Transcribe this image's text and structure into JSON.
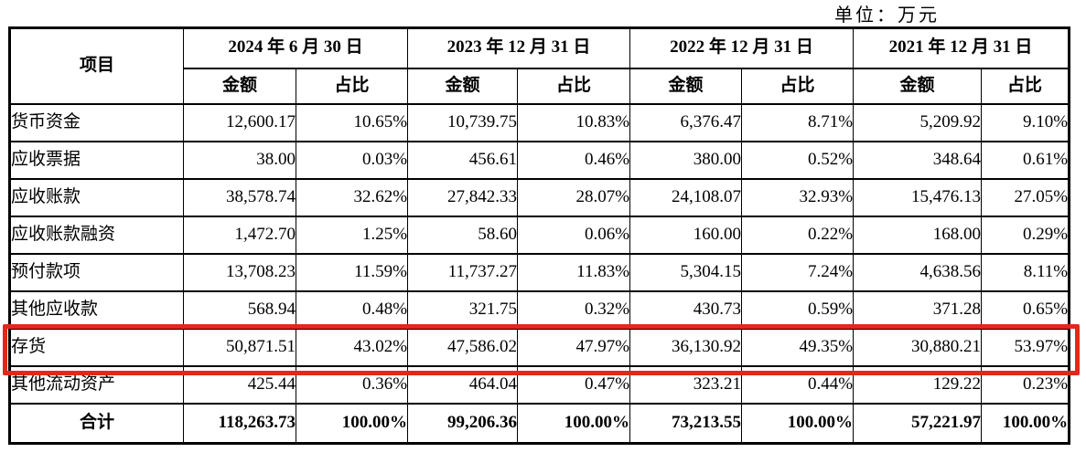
{
  "unit_label": "单位：万元",
  "accent_color": "#e2271c",
  "table": {
    "item_header": "项目",
    "periods": [
      {
        "label": "2024 年 6 月 30 日",
        "amount_label": "金额",
        "ratio_label": "占比"
      },
      {
        "label": "2023 年 12 月 31 日",
        "amount_label": "金额",
        "ratio_label": "占比"
      },
      {
        "label": "2022 年 12 月 31 日",
        "amount_label": "金额",
        "ratio_label": "占比"
      },
      {
        "label": "2021 年 12 月 31 日",
        "amount_label": "金额",
        "ratio_label": "占比"
      }
    ],
    "rows": [
      {
        "item": "货币资金",
        "cells": [
          "12,600.17",
          "10.65%",
          "10,739.75",
          "10.83%",
          "6,376.47",
          "8.71%",
          "5,209.92",
          "9.10%"
        ]
      },
      {
        "item": "应收票据",
        "cells": [
          "38.00",
          "0.03%",
          "456.61",
          "0.46%",
          "380.00",
          "0.52%",
          "348.64",
          "0.61%"
        ]
      },
      {
        "item": "应收账款",
        "cells": [
          "38,578.74",
          "32.62%",
          "27,842.33",
          "28.07%",
          "24,108.07",
          "32.93%",
          "15,476.13",
          "27.05%"
        ]
      },
      {
        "item": "应收账款融资",
        "cells": [
          "1,472.70",
          "1.25%",
          "58.60",
          "0.06%",
          "160.00",
          "0.22%",
          "168.00",
          "0.29%"
        ]
      },
      {
        "item": "预付款项",
        "cells": [
          "13,708.23",
          "11.59%",
          "11,737.27",
          "11.83%",
          "5,304.15",
          "7.24%",
          "4,638.56",
          "8.11%"
        ]
      },
      {
        "item": "其他应收款",
        "cells": [
          "568.94",
          "0.48%",
          "321.75",
          "0.32%",
          "430.73",
          "0.59%",
          "371.28",
          "0.65%"
        ]
      },
      {
        "item": "存货",
        "highlighted": true,
        "cells": [
          "50,871.51",
          "43.02%",
          "47,586.02",
          "47.97%",
          "36,130.92",
          "49.35%",
          "30,880.21",
          "53.97%"
        ]
      },
      {
        "item": "其他流动资产",
        "cells": [
          "425.44",
          "0.36%",
          "464.04",
          "0.47%",
          "323.21",
          "0.44%",
          "129.22",
          "0.23%"
        ]
      },
      {
        "item": "合计",
        "total": true,
        "cells": [
          "118,263.73",
          "100.00%",
          "99,206.36",
          "100.00%",
          "73,213.55",
          "100.00%",
          "57,221.97",
          "100.00%"
        ]
      }
    ]
  }
}
